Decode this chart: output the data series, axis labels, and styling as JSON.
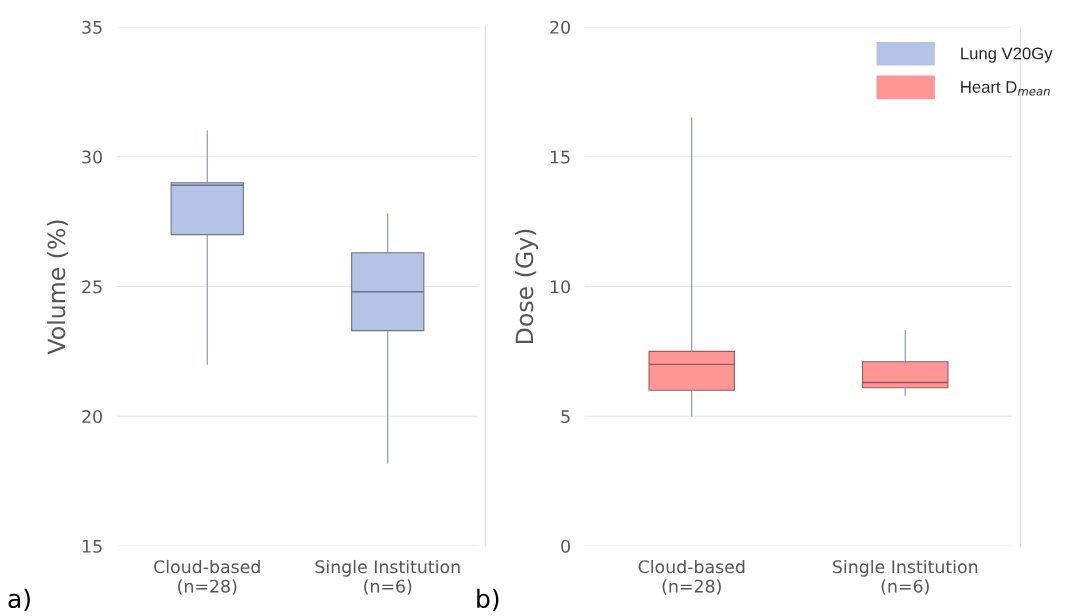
{
  "chart_data": [
    {
      "type": "box",
      "categories": [
        "Cloud-based\n(n=28)",
        "Single Institution\n(n=6)"
      ],
      "ylabel": "Volume (%)",
      "ylim": [
        15,
        35
      ],
      "yticks": [
        15,
        20,
        25,
        30,
        35
      ],
      "grid": "y",
      "annotations": [
        "a)"
      ],
      "series": [
        {
          "name": "Lung V20Gy",
          "color": "#b4c3e6",
          "boxes": [
            {
              "low": 22.0,
              "q1": 27.0,
              "median": 28.9,
              "q3": 29.0,
              "high": 31.0
            },
            {
              "low": 18.2,
              "q1": 23.3,
              "median": 24.8,
              "q3": 26.3,
              "high": 27.8
            }
          ]
        }
      ]
    },
    {
      "type": "box",
      "categories": [
        "Cloud-based\n(n=28)",
        "Single Institution\n(n=6)"
      ],
      "ylabel": "Dose (Gy)",
      "ylim": [
        0,
        20
      ],
      "yticks": [
        0,
        5,
        10,
        15,
        20
      ],
      "grid": "y",
      "legend": "top right",
      "annotations": [
        "b)"
      ],
      "series": [
        {
          "name": "Heart D$_{mean}$",
          "color": "#ff9696",
          "boxes": [
            {
              "low": 5.0,
              "q1": 6.0,
              "median": 7.0,
              "q3": 7.5,
              "high": 16.5
            },
            {
              "low": 5.8,
              "q1": 6.1,
              "median": 6.3,
              "q3": 7.1,
              "high": 8.3
            }
          ]
        }
      ]
    }
  ]
}
